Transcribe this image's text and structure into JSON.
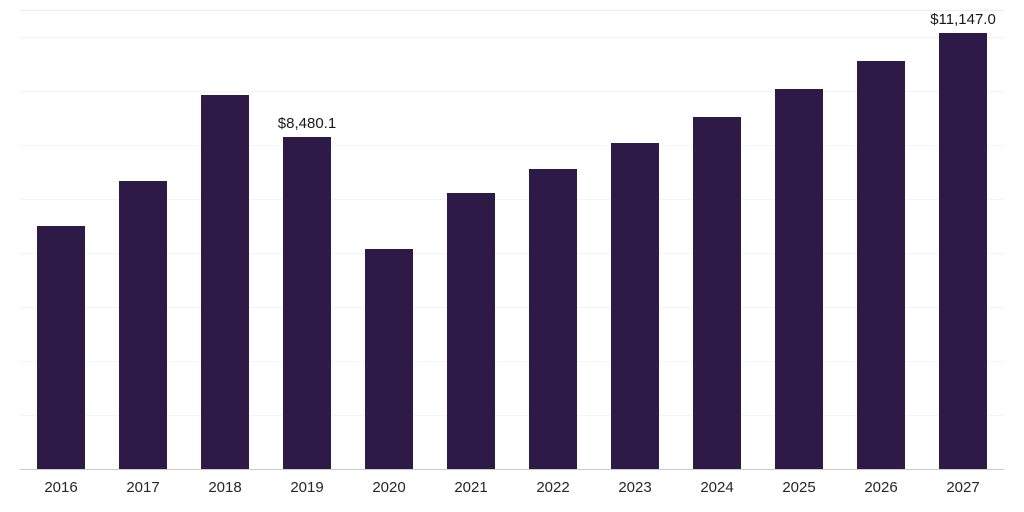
{
  "chart_data": {
    "type": "bar",
    "title": "",
    "xlabel": "",
    "ylabel": "",
    "categories": [
      "2016",
      "2017",
      "2018",
      "2019",
      "2020",
      "2021",
      "2022",
      "2023",
      "2024",
      "2025",
      "2026",
      "2027"
    ],
    "values": [
      6200,
      7350,
      9550,
      8480.1,
      5610,
      7040,
      7660,
      8320,
      8980,
      9700,
      10410,
      11147.0
    ],
    "labels": [
      "",
      "",
      "",
      "$8,480.1",
      "",
      "",
      "",
      "",
      "",
      "",
      "",
      "$11,147.0"
    ],
    "ylim": [
      0,
      11740
    ],
    "grid": "horizontal-faint",
    "legend": "none"
  },
  "colors": {
    "bar": "#2E1A47",
    "axis_line": "#CCCCCC",
    "gridline": "#F4F4F4",
    "data_label_text": "#1A1A1A",
    "tick_text": "#262626",
    "background": "#FFFFFF"
  }
}
